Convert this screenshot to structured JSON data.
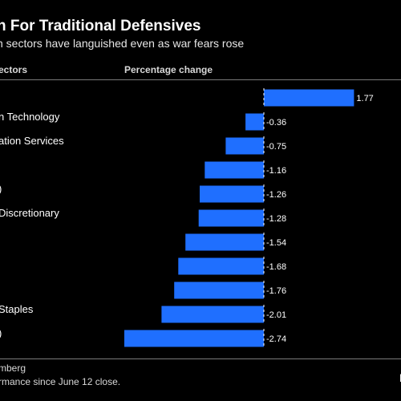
{
  "header": {
    "title": "n For Traditional Defensives",
    "subtitle": "n sectors have languished even as war fears rose",
    "col_sector": "ectors",
    "col_pct": "Percentage change"
  },
  "footer": {
    "source": "mberg",
    "note": "rmance since June 12 close.",
    "brand": "I"
  },
  "colors": {
    "bar": "#1f6fff",
    "background": "#000000"
  },
  "chart_data": {
    "type": "bar",
    "orientation": "horizontal",
    "categories": [
      "",
      "n Technology",
      "ation Services",
      "",
      ")",
      "Discretionary",
      "",
      "",
      "",
      "Staples",
      ")"
    ],
    "values": [
      1.77,
      -0.36,
      -0.75,
      -1.16,
      -1.26,
      -1.28,
      -1.54,
      -1.68,
      -1.76,
      -2.01,
      -2.74
    ],
    "value_labels": [
      "1.77",
      "-0.36",
      "-0.75",
      "-1.16",
      "-1.26",
      "-1.28",
      "-1.54",
      "-1.68",
      "-1.76",
      "-2.01",
      "-2.74"
    ],
    "xlabel": "Percentage change",
    "ylabel": "",
    "grid": false,
    "legend": "none"
  }
}
